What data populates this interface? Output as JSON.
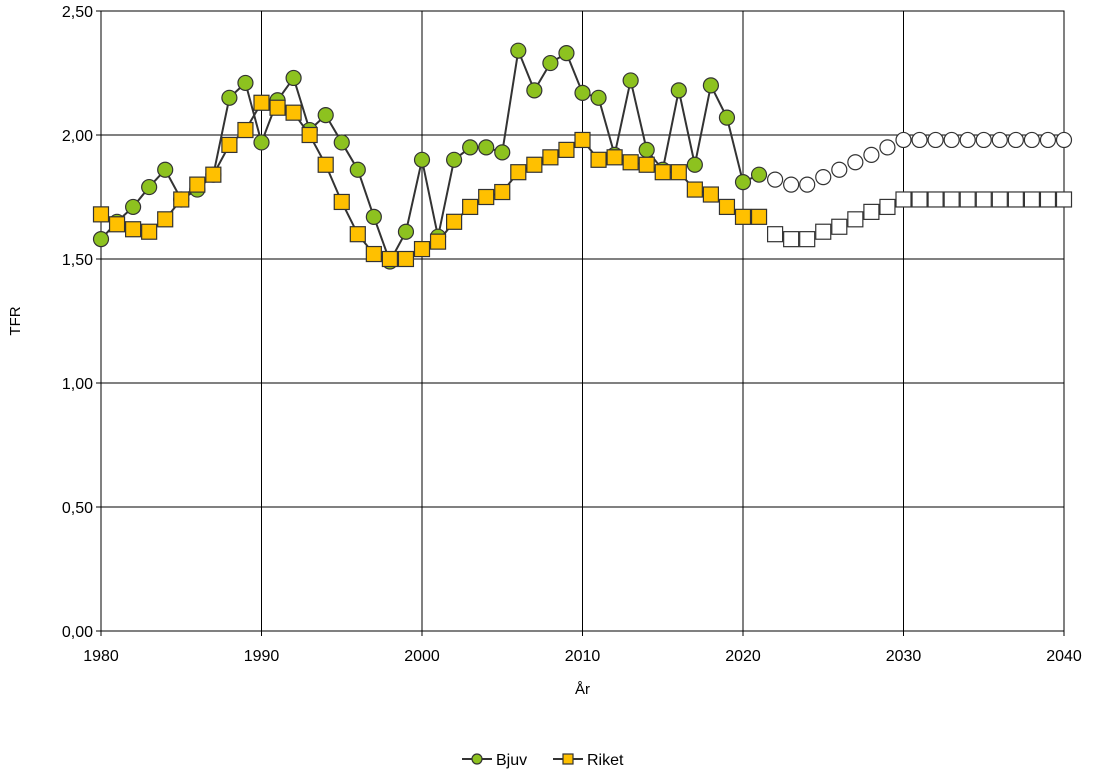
{
  "chart_data": {
    "type": "line",
    "title": "",
    "xlabel": "År",
    "ylabel": "TFR",
    "xlim": [
      1980,
      2040
    ],
    "ylim": [
      0,
      2.5
    ],
    "x_ticks": [
      1980,
      1990,
      2000,
      2010,
      2020,
      2030,
      2040
    ],
    "y_ticks": [
      "0,00",
      "0,50",
      "1,00",
      "1,50",
      "2,00",
      "2,50"
    ],
    "y_tick_values": [
      0,
      0.5,
      1.0,
      1.5,
      2.0,
      2.5
    ],
    "grid": true,
    "legend_position": "bottom-center",
    "series": [
      {
        "name": "Bjuv",
        "marker": "circle",
        "fill_color": "#8DC21F",
        "line_color": "#333333",
        "points": [
          [
            1980,
            1.58
          ],
          [
            1981,
            1.65
          ],
          [
            1982,
            1.71
          ],
          [
            1983,
            1.79
          ],
          [
            1984,
            1.86
          ],
          [
            1985,
            1.74
          ],
          [
            1986,
            1.78
          ],
          [
            1987,
            1.84
          ],
          [
            1988,
            2.15
          ],
          [
            1989,
            2.21
          ],
          [
            1990,
            1.97
          ],
          [
            1991,
            2.14
          ],
          [
            1992,
            2.23
          ],
          [
            1993,
            2.02
          ],
          [
            1994,
            2.08
          ],
          [
            1995,
            1.97
          ],
          [
            1996,
            1.86
          ],
          [
            1997,
            1.67
          ],
          [
            1998,
            1.49
          ],
          [
            1999,
            1.61
          ],
          [
            2000,
            1.9
          ],
          [
            2001,
            1.59
          ],
          [
            2002,
            1.9
          ],
          [
            2003,
            1.95
          ],
          [
            2004,
            1.95
          ],
          [
            2005,
            1.93
          ],
          [
            2006,
            2.34
          ],
          [
            2007,
            2.18
          ],
          [
            2008,
            2.29
          ],
          [
            2009,
            2.33
          ],
          [
            2010,
            2.17
          ],
          [
            2011,
            2.15
          ],
          [
            2012,
            1.92
          ],
          [
            2013,
            2.22
          ],
          [
            2014,
            1.94
          ],
          [
            2015,
            1.86
          ],
          [
            2016,
            2.18
          ],
          [
            2017,
            1.88
          ],
          [
            2018,
            2.2
          ],
          [
            2019,
            2.07
          ],
          [
            2020,
            1.81
          ],
          [
            2021,
            1.84
          ]
        ],
        "projection": [
          [
            2022,
            1.82
          ],
          [
            2023,
            1.8
          ],
          [
            2024,
            1.8
          ],
          [
            2025,
            1.83
          ],
          [
            2026,
            1.86
          ],
          [
            2027,
            1.89
          ],
          [
            2028,
            1.92
          ],
          [
            2029,
            1.95
          ],
          [
            2030,
            1.98
          ],
          [
            2031,
            1.98
          ],
          [
            2032,
            1.98
          ],
          [
            2033,
            1.98
          ],
          [
            2034,
            1.98
          ],
          [
            2035,
            1.98
          ],
          [
            2036,
            1.98
          ],
          [
            2037,
            1.98
          ],
          [
            2038,
            1.98
          ],
          [
            2039,
            1.98
          ],
          [
            2040,
            1.98
          ]
        ]
      },
      {
        "name": "Riket",
        "marker": "square",
        "fill_color": "#FFC000",
        "line_color": "#333333",
        "points": [
          [
            1980,
            1.68
          ],
          [
            1981,
            1.64
          ],
          [
            1982,
            1.62
          ],
          [
            1983,
            1.61
          ],
          [
            1984,
            1.66
          ],
          [
            1985,
            1.74
          ],
          [
            1986,
            1.8
          ],
          [
            1987,
            1.84
          ],
          [
            1988,
            1.96
          ],
          [
            1989,
            2.02
          ],
          [
            1990,
            2.13
          ],
          [
            1991,
            2.11
          ],
          [
            1992,
            2.09
          ],
          [
            1993,
            2.0
          ],
          [
            1994,
            1.88
          ],
          [
            1995,
            1.73
          ],
          [
            1996,
            1.6
          ],
          [
            1997,
            1.52
          ],
          [
            1998,
            1.5
          ],
          [
            1999,
            1.5
          ],
          [
            2000,
            1.54
          ],
          [
            2001,
            1.57
          ],
          [
            2002,
            1.65
          ],
          [
            2003,
            1.71
          ],
          [
            2004,
            1.75
          ],
          [
            2005,
            1.77
          ],
          [
            2006,
            1.85
          ],
          [
            2007,
            1.88
          ],
          [
            2008,
            1.91
          ],
          [
            2009,
            1.94
          ],
          [
            2010,
            1.98
          ],
          [
            2011,
            1.9
          ],
          [
            2012,
            1.91
          ],
          [
            2013,
            1.89
          ],
          [
            2014,
            1.88
          ],
          [
            2015,
            1.85
          ],
          [
            2016,
            1.85
          ],
          [
            2017,
            1.78
          ],
          [
            2018,
            1.76
          ],
          [
            2019,
            1.71
          ],
          [
            2020,
            1.67
          ],
          [
            2021,
            1.67
          ]
        ],
        "projection": [
          [
            2022,
            1.6
          ],
          [
            2023,
            1.58
          ],
          [
            2024,
            1.58
          ],
          [
            2025,
            1.61
          ],
          [
            2026,
            1.63
          ],
          [
            2027,
            1.66
          ],
          [
            2028,
            1.69
          ],
          [
            2029,
            1.71
          ],
          [
            2030,
            1.74
          ],
          [
            2031,
            1.74
          ],
          [
            2032,
            1.74
          ],
          [
            2033,
            1.74
          ],
          [
            2034,
            1.74
          ],
          [
            2035,
            1.74
          ],
          [
            2036,
            1.74
          ],
          [
            2037,
            1.74
          ],
          [
            2038,
            1.74
          ],
          [
            2039,
            1.74
          ],
          [
            2040,
            1.74
          ]
        ]
      }
    ]
  }
}
